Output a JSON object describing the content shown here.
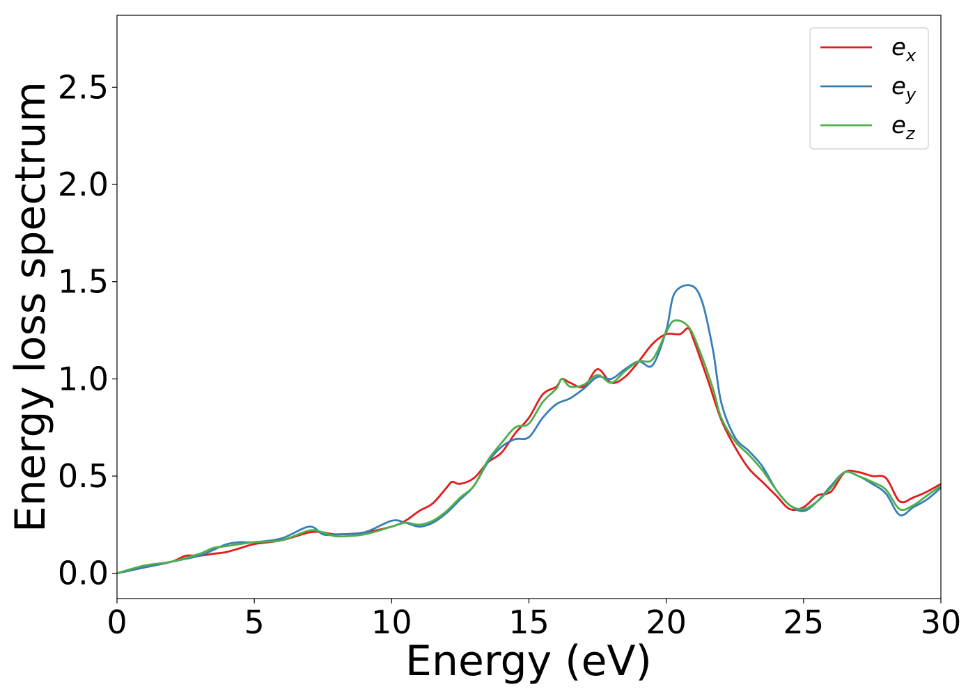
{
  "chart_data": {
    "type": "line",
    "xlabel": "Energy (eV)",
    "ylabel": "Energy loss spectrum",
    "xlim": [
      0,
      30
    ],
    "ylim": [
      -0.13,
      2.87
    ],
    "xticks": [
      "0",
      "5",
      "10",
      "15",
      "20",
      "25",
      "30"
    ],
    "yticks": [
      "0.0",
      "0.5",
      "1.0",
      "1.5",
      "2.0",
      "2.5"
    ],
    "grid": false,
    "legend_position": "top-right",
    "series": [
      {
        "name": "e",
        "name_sub": "x",
        "color": "#e41a1c",
        "points": [
          [
            0,
            0
          ],
          [
            1,
            0.03
          ],
          [
            2,
            0.06
          ],
          [
            2.5,
            0.09
          ],
          [
            3,
            0.09
          ],
          [
            3.5,
            0.1
          ],
          [
            4,
            0.11
          ],
          [
            4.5,
            0.13
          ],
          [
            5,
            0.15
          ],
          [
            6,
            0.17
          ],
          [
            7,
            0.21
          ],
          [
            7.5,
            0.21
          ],
          [
            8,
            0.2
          ],
          [
            9,
            0.21
          ],
          [
            10,
            0.24
          ],
          [
            10.5,
            0.27
          ],
          [
            11,
            0.32
          ],
          [
            11.5,
            0.36
          ],
          [
            12,
            0.44
          ],
          [
            12.2,
            0.47
          ],
          [
            12.5,
            0.46
          ],
          [
            13,
            0.49
          ],
          [
            13.5,
            0.57
          ],
          [
            14,
            0.62
          ],
          [
            14.5,
            0.72
          ],
          [
            15,
            0.8
          ],
          [
            15.5,
            0.92
          ],
          [
            16,
            0.96
          ],
          [
            16.2,
            1.0
          ],
          [
            16.5,
            0.98
          ],
          [
            17,
            0.96
          ],
          [
            17.5,
            1.05
          ],
          [
            18,
            0.98
          ],
          [
            18.5,
            1.01
          ],
          [
            19,
            1.09
          ],
          [
            19.5,
            1.18
          ],
          [
            20,
            1.23
          ],
          [
            20.5,
            1.23
          ],
          [
            20.8,
            1.26
          ],
          [
            21,
            1.2
          ],
          [
            21.5,
            1.0
          ],
          [
            22,
            0.79
          ],
          [
            22.5,
            0.65
          ],
          [
            23,
            0.54
          ],
          [
            23.5,
            0.47
          ],
          [
            24,
            0.4
          ],
          [
            24.5,
            0.33
          ],
          [
            25,
            0.34
          ],
          [
            25.5,
            0.4
          ],
          [
            26,
            0.42
          ],
          [
            26.5,
            0.52
          ],
          [
            27,
            0.52
          ],
          [
            27.5,
            0.5
          ],
          [
            28,
            0.49
          ],
          [
            28.5,
            0.37
          ],
          [
            29,
            0.39
          ],
          [
            29.5,
            0.42
          ],
          [
            30,
            0.46
          ]
        ]
      },
      {
        "name": "e",
        "name_sub": "y",
        "color": "#377eb8",
        "points": [
          [
            0,
            0
          ],
          [
            1,
            0.03
          ],
          [
            2,
            0.06
          ],
          [
            3,
            0.09
          ],
          [
            3.5,
            0.12
          ],
          [
            4,
            0.15
          ],
          [
            4.5,
            0.16
          ],
          [
            5,
            0.16
          ],
          [
            6,
            0.18
          ],
          [
            7,
            0.24
          ],
          [
            7.5,
            0.2
          ],
          [
            8,
            0.2
          ],
          [
            9,
            0.21
          ],
          [
            10,
            0.27
          ],
          [
            10.5,
            0.26
          ],
          [
            11,
            0.24
          ],
          [
            11.5,
            0.26
          ],
          [
            12,
            0.31
          ],
          [
            12.5,
            0.38
          ],
          [
            13,
            0.45
          ],
          [
            13.5,
            0.57
          ],
          [
            14,
            0.65
          ],
          [
            14.5,
            0.69
          ],
          [
            15,
            0.7
          ],
          [
            15.5,
            0.8
          ],
          [
            16,
            0.87
          ],
          [
            16.5,
            0.9
          ],
          [
            17,
            0.95
          ],
          [
            17.5,
            1.01
          ],
          [
            18,
            1.0
          ],
          [
            18.5,
            1.05
          ],
          [
            19,
            1.09
          ],
          [
            19.5,
            1.07
          ],
          [
            20,
            1.25
          ],
          [
            20.3,
            1.44
          ],
          [
            20.9,
            1.48
          ],
          [
            21.3,
            1.4
          ],
          [
            21.7,
            1.15
          ],
          [
            22,
            0.88
          ],
          [
            22.5,
            0.7
          ],
          [
            23,
            0.63
          ],
          [
            23.5,
            0.55
          ],
          [
            24,
            0.43
          ],
          [
            24.5,
            0.35
          ],
          [
            25,
            0.32
          ],
          [
            25.5,
            0.37
          ],
          [
            26,
            0.45
          ],
          [
            26.5,
            0.52
          ],
          [
            27,
            0.5
          ],
          [
            27.5,
            0.46
          ],
          [
            28,
            0.41
          ],
          [
            28.5,
            0.3
          ],
          [
            29,
            0.34
          ],
          [
            29.5,
            0.38
          ],
          [
            30,
            0.44
          ]
        ]
      },
      {
        "name": "e",
        "name_sub": "z",
        "color": "#4daf4a",
        "points": [
          [
            0,
            0
          ],
          [
            1,
            0.04
          ],
          [
            2,
            0.06
          ],
          [
            3,
            0.1
          ],
          [
            3.5,
            0.13
          ],
          [
            4,
            0.14
          ],
          [
            5,
            0.16
          ],
          [
            6,
            0.17
          ],
          [
            7,
            0.22
          ],
          [
            7.5,
            0.21
          ],
          [
            8,
            0.19
          ],
          [
            9,
            0.2
          ],
          [
            10,
            0.24
          ],
          [
            10.5,
            0.26
          ],
          [
            11,
            0.25
          ],
          [
            11.5,
            0.27
          ],
          [
            12,
            0.32
          ],
          [
            12.5,
            0.39
          ],
          [
            13,
            0.45
          ],
          [
            13.5,
            0.58
          ],
          [
            14,
            0.67
          ],
          [
            14.5,
            0.75
          ],
          [
            15,
            0.77
          ],
          [
            15.5,
            0.88
          ],
          [
            16,
            0.95
          ],
          [
            16.2,
            1.0
          ],
          [
            16.5,
            0.96
          ],
          [
            17,
            0.97
          ],
          [
            17.5,
            1.02
          ],
          [
            18,
            0.98
          ],
          [
            18.5,
            1.04
          ],
          [
            19,
            1.09
          ],
          [
            19.5,
            1.1
          ],
          [
            20,
            1.24
          ],
          [
            20.3,
            1.3
          ],
          [
            20.8,
            1.27
          ],
          [
            21.2,
            1.15
          ],
          [
            21.7,
            0.95
          ],
          [
            22,
            0.8
          ],
          [
            22.5,
            0.68
          ],
          [
            23,
            0.61
          ],
          [
            23.5,
            0.53
          ],
          [
            24,
            0.43
          ],
          [
            24.5,
            0.35
          ],
          [
            25,
            0.33
          ],
          [
            25.5,
            0.37
          ],
          [
            26,
            0.44
          ],
          [
            26.5,
            0.52
          ],
          [
            27,
            0.5
          ],
          [
            27.5,
            0.47
          ],
          [
            28,
            0.43
          ],
          [
            28.5,
            0.33
          ],
          [
            29,
            0.35
          ],
          [
            29.5,
            0.4
          ],
          [
            30,
            0.45
          ]
        ]
      }
    ]
  }
}
